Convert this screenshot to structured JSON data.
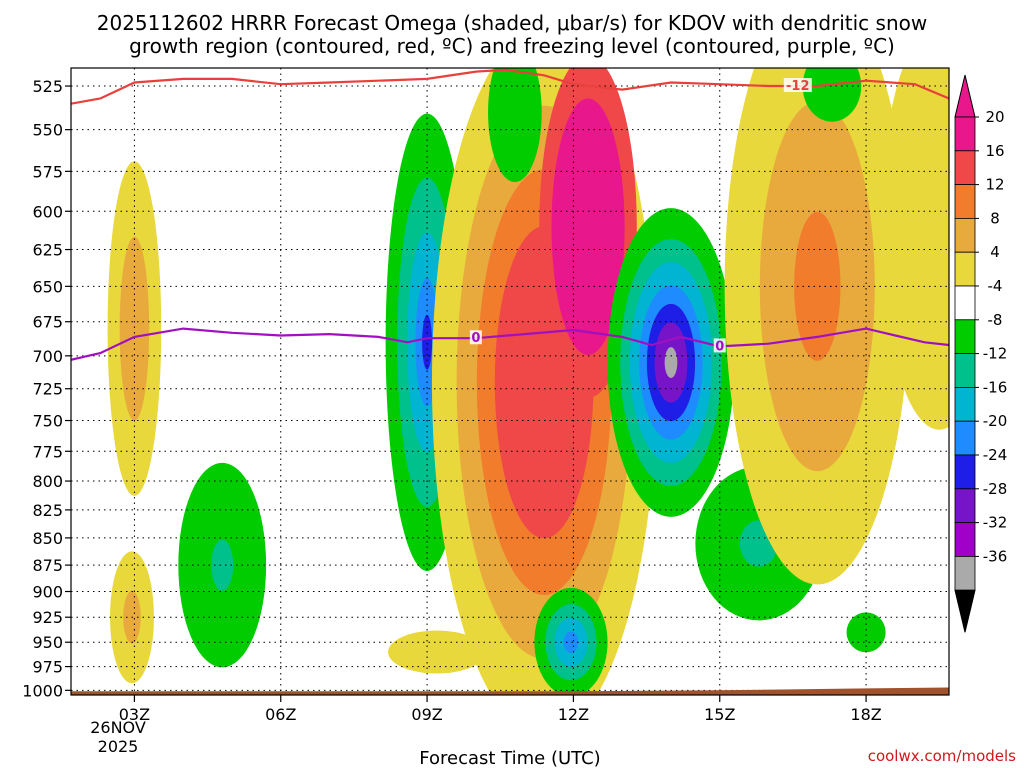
{
  "chart_data": {
    "type": "contour",
    "title_line1": "2025112602 HRRR Forecast Omega (shaded, μbar/s) for KDOV with dendritic snow",
    "title_line2": "growth region (contoured, red, ºC) and freezing level (contoured, purple, ºC)",
    "xlabel": "Forecast Time (UTC)",
    "credit": "coolwx.com/models",
    "x_range_hours": [
      1.7,
      19.7
    ],
    "x_ticks": [
      {
        "hour": 3,
        "label": "03Z"
      },
      {
        "hour": 6,
        "label": "06Z"
      },
      {
        "hour": 9,
        "label": "09Z"
      },
      {
        "hour": 12,
        "label": "12Z"
      },
      {
        "hour": 15,
        "label": "15Z"
      },
      {
        "hour": 18,
        "label": "18Z"
      }
    ],
    "date_label_line1": "26NOV",
    "date_label_line2": "2025",
    "y_range_hpa": [
      1005,
      515
    ],
    "y_ticks": [
      525,
      550,
      575,
      600,
      625,
      650,
      675,
      700,
      725,
      750,
      775,
      800,
      825,
      850,
      875,
      900,
      925,
      950,
      975,
      1000
    ],
    "colorbar": {
      "labels": [
        "20",
        "16",
        "12",
        "8",
        "4",
        "-4",
        "-8",
        "-12",
        "-16",
        "-20",
        "-24",
        "-28",
        "-32",
        "-36"
      ],
      "bins": [
        {
          "color": "#e8178c"
        },
        {
          "color": "#f04848"
        },
        {
          "color": "#f07c2c"
        },
        {
          "color": "#e8aa3c"
        },
        {
          "color": "#e8d83c"
        },
        {
          "color": "#ffffff"
        },
        {
          "color": "#00cc00"
        },
        {
          "color": "#00c08c"
        },
        {
          "color": "#00b4d2"
        },
        {
          "color": "#1e8cff"
        },
        {
          "color": "#1e1ee6"
        },
        {
          "color": "#7814c8"
        },
        {
          "color": "#a000c8"
        },
        {
          "color": "#aaaaaa"
        }
      ],
      "top_color": "#e8178c",
      "bottom_color": "#000000"
    },
    "omega_features": [
      {
        "name": "yellow-03z",
        "hour": 3.0,
        "p": 680,
        "rx_h": 0.55,
        "ry_hpa": 120,
        "levels": [
          {
            "color": "#e8d83c",
            "s": 1.0
          },
          {
            "color": "#e8aa3c",
            "s": 0.55
          }
        ]
      },
      {
        "name": "yellow-03z-low",
        "hour": 2.95,
        "p": 925,
        "rx_h": 0.45,
        "ry_hpa": 65,
        "levels": [
          {
            "color": "#e8d83c",
            "s": 1.0
          },
          {
            "color": "#e8aa3c",
            "s": 0.4
          }
        ]
      },
      {
        "name": "green-05z",
        "hour": 4.8,
        "p": 875,
        "rx_h": 0.9,
        "ry_hpa": 95,
        "levels": [
          {
            "color": "#00cc00",
            "s": 1.0
          },
          {
            "color": "#00c08c",
            "s": 0.25
          }
        ]
      },
      {
        "name": "yellow-09z-low",
        "hour": 9.2,
        "p": 960,
        "rx_h": 1.0,
        "ry_hpa": 22,
        "levels": [
          {
            "color": "#e8d83c",
            "s": 1.0
          }
        ]
      },
      {
        "name": "rising-09z",
        "hour": 9.0,
        "p": 690,
        "rx_h": 0.85,
        "ry_hpa": 165,
        "levels": [
          {
            "color": "#00cc00",
            "s": 1.0
          },
          {
            "color": "#00c08c",
            "s": 0.72
          },
          {
            "color": "#00b4d2",
            "s": 0.48
          },
          {
            "color": "#1e8cff",
            "s": 0.28
          },
          {
            "color": "#1e1ee6",
            "s": 0.12
          }
        ]
      },
      {
        "name": "sinking-band",
        "hour": 11.4,
        "p": 720,
        "rx_h": 2.3,
        "ry_hpa": 260,
        "levels": [
          {
            "color": "#e8d83c",
            "s": 1.0
          },
          {
            "color": "#e8aa3c",
            "s": 0.78
          },
          {
            "color": "#f07c2c",
            "s": 0.6
          },
          {
            "color": "#f04848",
            "s": 0.44
          }
        ]
      },
      {
        "name": "sinking-core",
        "hour": 12.3,
        "p": 610,
        "rx_h": 1.0,
        "ry_hpa": 110,
        "levels": [
          {
            "color": "#f04848",
            "s": 1.0
          },
          {
            "color": "#e8178c",
            "s": 0.75
          }
        ]
      },
      {
        "name": "rising-14z",
        "hour": 14.0,
        "p": 705,
        "rx_h": 1.3,
        "ry_hpa": 115,
        "levels": [
          {
            "color": "#00cc00",
            "s": 1.0
          },
          {
            "color": "#00c08c",
            "s": 0.8
          },
          {
            "color": "#00b4d2",
            "s": 0.65
          },
          {
            "color": "#1e8cff",
            "s": 0.5
          },
          {
            "color": "#1e1ee6",
            "s": 0.38
          },
          {
            "color": "#7814c8",
            "s": 0.26
          },
          {
            "color": "#aaaaaa",
            "s": 0.1
          }
        ]
      },
      {
        "name": "green-16z",
        "hour": 15.8,
        "p": 855,
        "rx_h": 1.3,
        "ry_hpa": 70,
        "levels": [
          {
            "color": "#00cc00",
            "s": 1.0
          },
          {
            "color": "#00c08c",
            "s": 0.3
          }
        ]
      },
      {
        "name": "rising-12z-low",
        "hour": 11.95,
        "p": 950,
        "rx_h": 0.75,
        "ry_hpa": 55,
        "levels": [
          {
            "color": "#00cc00",
            "s": 1.0
          },
          {
            "color": "#00c08c",
            "s": 0.7
          },
          {
            "color": "#00b4d2",
            "s": 0.45
          },
          {
            "color": "#1e8cff",
            "s": 0.2
          }
        ]
      },
      {
        "name": "yellow-17z",
        "hour": 17.0,
        "p": 650,
        "rx_h": 1.9,
        "ry_hpa": 200,
        "levels": [
          {
            "color": "#e8d83c",
            "s": 1.0
          },
          {
            "color": "#e8aa3c",
            "s": 0.62
          },
          {
            "color": "#f07c2c",
            "s": 0.25
          }
        ]
      },
      {
        "name": "yellow-19z",
        "hour": 19.5,
        "p": 610,
        "rx_h": 1.2,
        "ry_hpa": 130,
        "levels": [
          {
            "color": "#e8d83c",
            "s": 1.0
          }
        ]
      },
      {
        "name": "green-10z-top",
        "hour": 10.8,
        "p": 540,
        "rx_h": 0.55,
        "ry_hpa": 40,
        "levels": [
          {
            "color": "#00cc00",
            "s": 1.0
          }
        ]
      },
      {
        "name": "green-17z-top",
        "hour": 17.3,
        "p": 525,
        "rx_h": 0.6,
        "ry_hpa": 20,
        "levels": [
          {
            "color": "#00cc00",
            "s": 1.0
          }
        ]
      },
      {
        "name": "green-18z-low",
        "hour": 18.0,
        "p": 940,
        "rx_h": 0.4,
        "ry_hpa": 20,
        "levels": [
          {
            "color": "#00cc00",
            "s": 1.0
          }
        ]
      }
    ],
    "dgz_contour": {
      "label": "-12",
      "label_hour": 16.6,
      "color": "#e8403c",
      "points": [
        [
          1.7,
          535
        ],
        [
          2.3,
          532
        ],
        [
          3.0,
          523
        ],
        [
          4.0,
          521
        ],
        [
          5.0,
          521
        ],
        [
          6.0,
          524
        ],
        [
          7.0,
          523
        ],
        [
          8.0,
          522
        ],
        [
          9.0,
          521
        ],
        [
          10.0,
          517
        ],
        [
          10.6,
          516
        ],
        [
          11.4,
          519
        ],
        [
          12.0,
          524
        ],
        [
          13.0,
          527
        ],
        [
          14.0,
          523
        ],
        [
          15.0,
          524
        ],
        [
          16.0,
          525
        ],
        [
          17.0,
          525
        ],
        [
          18.0,
          522
        ],
        [
          19.0,
          524
        ],
        [
          19.7,
          532
        ]
      ]
    },
    "freezing_contour": {
      "label": "0",
      "label_hours": [
        10.0,
        15.0
      ],
      "color": "#a010c0",
      "points": [
        [
          1.7,
          703
        ],
        [
          2.3,
          698
        ],
        [
          3.0,
          686
        ],
        [
          4.0,
          680
        ],
        [
          5.0,
          683
        ],
        [
          6.0,
          685
        ],
        [
          7.0,
          684
        ],
        [
          8.0,
          686
        ],
        [
          8.6,
          690
        ],
        [
          9.0,
          687
        ],
        [
          10.0,
          687
        ],
        [
          11.0,
          684
        ],
        [
          12.0,
          681
        ],
        [
          13.0,
          686
        ],
        [
          13.6,
          692
        ],
        [
          14.2,
          686
        ],
        [
          15.0,
          693
        ],
        [
          16.0,
          691
        ],
        [
          17.0,
          686
        ],
        [
          18.0,
          680
        ],
        [
          18.6,
          685
        ],
        [
          19.2,
          690
        ],
        [
          19.7,
          692
        ]
      ]
    },
    "terrain": {
      "color": "#a0522d",
      "points": [
        [
          1.7,
          1001
        ],
        [
          4.0,
          1001
        ],
        [
          6.0,
          1001
        ],
        [
          9.0,
          1001
        ],
        [
          12.0,
          1001
        ],
        [
          15.0,
          1000
        ],
        [
          18.0,
          998
        ],
        [
          19.7,
          997
        ]
      ]
    }
  }
}
